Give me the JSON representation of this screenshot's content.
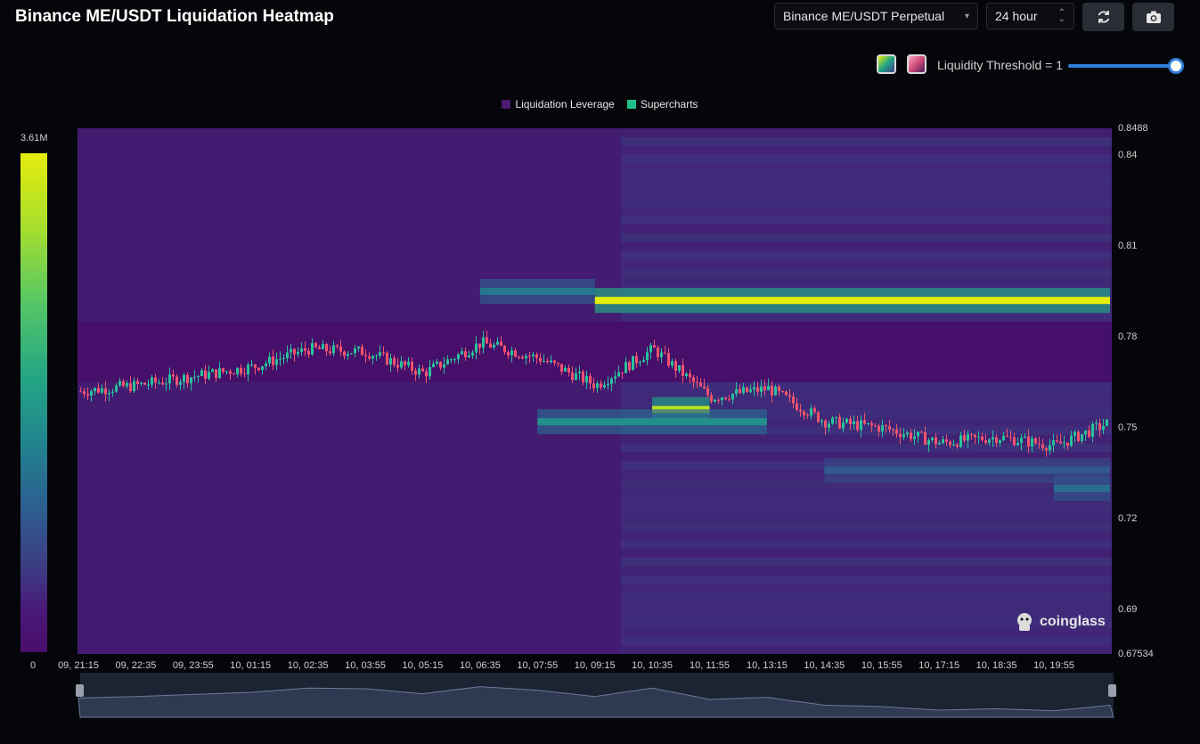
{
  "header": {
    "title": "Binance ME/USDT Liquidation Heatmap",
    "pair_select": "Binance ME/USDT Perpetual",
    "range_select": "24 hour",
    "refresh_icon": "refresh-icon",
    "camera_icon": "camera-icon"
  },
  "controls": {
    "threshold_label": "Liquidity Threshold = 1",
    "threshold_value": 1,
    "palette_swatches": [
      "viridis-palette",
      "pink-palette"
    ]
  },
  "brand": "coinglass",
  "colors": {
    "accent": "#2f7fd9",
    "candle_up": "#26c39b",
    "candle_down": "#f2536d",
    "heatmap_base": "#46106a",
    "heatmap_max": "#e6ec0c"
  },
  "chart_data": {
    "type": "heatmap",
    "legend": [
      "Liquidation Leverage",
      "Supercharts"
    ],
    "legend_colors": [
      "#4b1a6e",
      "#21c08b"
    ],
    "colorbar": {
      "max_label": "3.61M",
      "min_label": "0",
      "max": 3610000,
      "min": 0
    },
    "y_axis": {
      "ticks": [
        "0.8488",
        "0.84",
        "0.81",
        "0.78",
        "0.75",
        "0.72",
        "0.69",
        "0.67534"
      ],
      "range": [
        0.67534,
        0.8488
      ]
    },
    "x_axis": {
      "ticks": [
        "09, 21:15",
        "09, 22:35",
        "09, 23:55",
        "10, 01:15",
        "10, 02:35",
        "10, 03:55",
        "10, 05:15",
        "10, 06:35",
        "10, 07:55",
        "10, 09:15",
        "10, 10:35",
        "10, 11:55",
        "10, 13:15",
        "10, 14:35",
        "10, 15:55",
        "10, 17:15",
        "10, 18:35",
        "10, 19:55"
      ]
    },
    "price_path": [
      [
        "09, 21:15",
        0.762
      ],
      [
        "09, 22:35",
        0.764
      ],
      [
        "09, 23:55",
        0.767
      ],
      [
        "10, 01:15",
        0.77
      ],
      [
        "10, 02:35",
        0.776
      ],
      [
        "10, 03:55",
        0.775
      ],
      [
        "10, 05:15",
        0.768
      ],
      [
        "10, 06:35",
        0.778
      ],
      [
        "10, 07:55",
        0.773
      ],
      [
        "10, 09:15",
        0.764
      ],
      [
        "10, 10:35",
        0.776
      ],
      [
        "10, 11:55",
        0.76
      ],
      [
        "10, 13:15",
        0.763
      ],
      [
        "10, 14:35",
        0.752
      ],
      [
        "10, 15:55",
        0.75
      ],
      [
        "10, 17:15",
        0.745
      ],
      [
        "10, 18:35",
        0.747
      ],
      [
        "10, 19:55",
        0.744
      ],
      [
        "10, 20:50",
        0.752
      ]
    ],
    "liquidation_bands": [
      {
        "price": 0.792,
        "from": "10, 09:15",
        "to": "10, 20:50",
        "intensity": 1.0
      },
      {
        "price": 0.756,
        "from": "10, 10:35",
        "to": "10, 11:55",
        "intensity": 0.95
      },
      {
        "price": 0.752,
        "from": "10, 07:55",
        "to": "10, 13:15",
        "intensity": 0.6
      },
      {
        "price": 0.795,
        "from": "10, 06:35",
        "to": "10, 09:15",
        "intensity": 0.5
      },
      {
        "price": 0.736,
        "from": "10, 14:35",
        "to": "10, 20:50",
        "intensity": 0.35
      },
      {
        "price": 0.73,
        "from": "10, 19:55",
        "to": "10, 20:50",
        "intensity": 0.45
      }
    ]
  }
}
